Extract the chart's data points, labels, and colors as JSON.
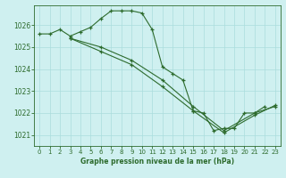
{
  "title": "Graphe pression niveau de la mer (hPa)",
  "bg_color": "#cff0f0",
  "grid_color": "#aadddd",
  "line_color": "#2d6b2d",
  "marker_color": "#2d6b2d",
  "ylim": [
    1020.5,
    1026.9
  ],
  "xlim": [
    -0.5,
    23.5
  ],
  "yticks": [
    1021,
    1022,
    1023,
    1024,
    1025,
    1026
  ],
  "xticks": [
    0,
    1,
    2,
    3,
    4,
    5,
    6,
    7,
    8,
    9,
    10,
    11,
    12,
    13,
    14,
    15,
    16,
    17,
    18,
    19,
    20,
    21,
    22,
    23
  ],
  "series": [
    {
      "x": [
        0,
        1,
        2,
        3,
        4,
        5,
        6,
        7,
        8,
        9,
        10,
        11,
        12,
        13,
        14,
        15,
        16,
        17,
        18,
        19,
        20,
        21,
        22
      ],
      "y": [
        1025.6,
        1025.6,
        1025.8,
        1025.5,
        1025.7,
        1025.9,
        1026.3,
        1026.65,
        1026.65,
        1026.65,
        1026.55,
        1025.8,
        1024.1,
        1023.8,
        1023.5,
        1022.1,
        1022.0,
        1021.2,
        1021.3,
        1021.3,
        1022.0,
        1022.0,
        1022.3
      ]
    },
    {
      "x": [
        3,
        6,
        9,
        12,
        15,
        18,
        21,
        23
      ],
      "y": [
        1025.4,
        1025.0,
        1024.4,
        1023.5,
        1022.3,
        1021.2,
        1022.0,
        1022.3
      ]
    },
    {
      "x": [
        3,
        6,
        9,
        12,
        15,
        18,
        21,
        23
      ],
      "y": [
        1025.4,
        1024.8,
        1024.2,
        1023.2,
        1022.1,
        1021.1,
        1021.9,
        1022.35
      ]
    }
  ]
}
